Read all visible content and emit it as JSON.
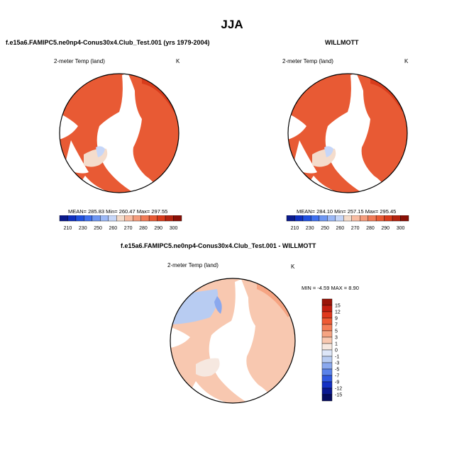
{
  "page_title": "JJA",
  "chart_data": [
    {
      "type": "heatmap",
      "projection": "north-polar-stereographic",
      "title": "f.e15a6.FAMIPC5.ne0np4-Conus30x4.Club_Test.001 (yrs 1979-2004)",
      "variable": "2-meter Temp (land)",
      "units": "K",
      "stats": {
        "text": "MEAN= 285.83  Min= 260.47  Max= 297.55",
        "mean": 285.83,
        "min": 260.47,
        "max": 297.55
      },
      "colorbar": {
        "ticks": [
          "210",
          "230",
          "250",
          "260",
          "270",
          "280",
          "290",
          "300"
        ],
        "colors": [
          "#0a1a8c",
          "#1030c0",
          "#2050e0",
          "#4070ee",
          "#6e96f2",
          "#9cb8f6",
          "#c6d6f8",
          "#f4dccc",
          "#f8bca2",
          "#f49c7c",
          "#f07a56",
          "#e85a34",
          "#d83c1c",
          "#b42410",
          "#8a1006"
        ]
      }
    },
    {
      "type": "heatmap",
      "projection": "north-polar-stereographic",
      "title": "WILLMOTT",
      "variable": "2-meter Temp (land)",
      "units": "K",
      "stats": {
        "text": "MEAN= 284.10  Min= 257.15  Max= 295.45",
        "mean": 284.1,
        "min": 257.15,
        "max": 295.45
      },
      "colorbar": {
        "ticks": [
          "210",
          "230",
          "250",
          "260",
          "270",
          "280",
          "290",
          "300"
        ],
        "colors": [
          "#0a1a8c",
          "#1030c0",
          "#2050e0",
          "#4070ee",
          "#6e96f2",
          "#9cb8f6",
          "#c6d6f8",
          "#f4dccc",
          "#f8bca2",
          "#f49c7c",
          "#f07a56",
          "#e85a34",
          "#d83c1c",
          "#b42410",
          "#8a1006"
        ]
      }
    },
    {
      "type": "heatmap",
      "projection": "north-polar-stereographic",
      "title": "f.e15a6.FAMIPC5.ne0np4-Conus30x4.Club_Test.001 - WILLMOTT",
      "variable": "2-meter Temp (land)",
      "units": "K",
      "stats": {
        "text": "MIN =  -4.59 MAX =   8.90",
        "min": -4.59,
        "max": 8.9
      },
      "colorbar": {
        "ticks": [
          "15",
          "12",
          "9",
          "7",
          "5",
          "3",
          "1",
          "0",
          "-1",
          "-3",
          "-5",
          "-7",
          "-9",
          "-12",
          "-15"
        ],
        "colors": [
          "#9a1408",
          "#c41e10",
          "#e0381c",
          "#ee5a34",
          "#f47e58",
          "#f6a482",
          "#f8c8b0",
          "#f6e8e0",
          "#dde6f8",
          "#b8ccf2",
          "#8aa8ee",
          "#5a82ea",
          "#3058e0",
          "#1430c4",
          "#0a1890",
          "#060c60"
        ]
      }
    }
  ]
}
